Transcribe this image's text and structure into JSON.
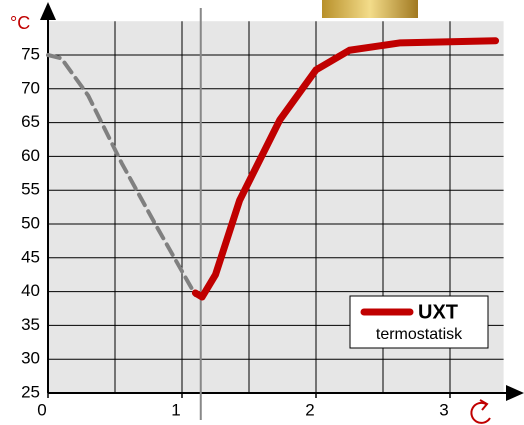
{
  "chart_data": {
    "type": "line",
    "y_label": "°C",
    "xlim": [
      0,
      3.4
    ],
    "ylim": [
      25,
      80
    ],
    "xticks": [
      0,
      1,
      2,
      3
    ],
    "yticks": [
      25,
      30,
      35,
      40,
      45,
      50,
      55,
      60,
      65,
      70,
      75
    ],
    "xgridlines": [
      0.5,
      1,
      1.5,
      2,
      2.5,
      3
    ],
    "grid": true,
    "vline": 1.14,
    "legend_note": "termostatisk",
    "legend": "lower right",
    "series": [
      {
        "color": "#808080",
        "dashed": true,
        "x": [
          0,
          0.1,
          0.3,
          0.55,
          0.8,
          1.0,
          1.1
        ],
        "values": [
          75,
          74.5,
          69,
          59,
          50,
          43,
          39.5
        ]
      },
      {
        "name": "UXT",
        "color": "#c00000",
        "dashed": false,
        "x": [
          1.1,
          1.15,
          1.25,
          1.43,
          1.73,
          2.0,
          2.25,
          2.63,
          3.34
        ],
        "values": [
          39.8,
          39.2,
          42.5,
          53.5,
          65.4,
          72.8,
          75.7,
          76.8,
          77.1
        ]
      }
    ]
  }
}
